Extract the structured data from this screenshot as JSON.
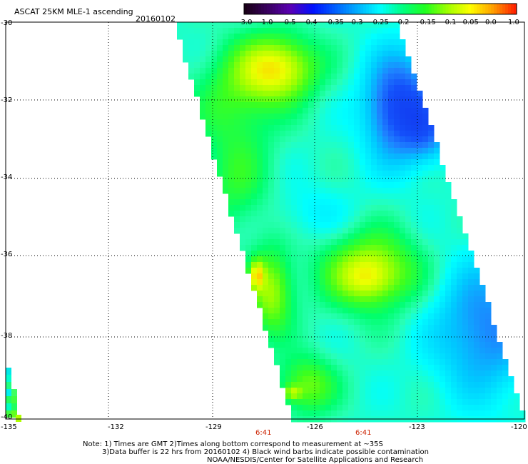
{
  "header": {
    "title": "ASCAT 25KM MLE-1 ascending",
    "date": "20160102"
  },
  "colorbar": {
    "tick_labels": [
      "-3.0",
      "-1.0",
      "-0.5",
      "-0.4",
      "-0.35",
      "-0.3",
      "-0.25",
      "-0.2",
      "-0.15",
      "-0.1",
      "-0.05",
      "0.0",
      "1.0"
    ],
    "colors": [
      "#1a0018",
      "#3a0060",
      "#5a00b4",
      "#0010ff",
      "#0060ff",
      "#00b0ff",
      "#00ffff",
      "#00ff80",
      "#20ff20",
      "#a0ff00",
      "#ffff00",
      "#ffa000",
      "#ff2000"
    ]
  },
  "map": {
    "lat_labels": [
      "-30",
      "-32",
      "-34",
      "-36",
      "-38",
      "-40"
    ],
    "lon_labels": [
      "-135",
      "-132",
      "-129",
      "-126",
      "-123",
      "-120"
    ],
    "time_labels": [
      "6:41",
      "6:41"
    ]
  },
  "footer": {
    "line1": "Note: 1) Times are GMT 2)Times along bottom correspond to measurement at ~35S",
    "line2": "3)Data buffer is 22 hrs from 20160102 4) Black wind barbs indicate possible contamination",
    "line3": "NOAA/NESDIS/Center for Satellite Applications and Research"
  }
}
